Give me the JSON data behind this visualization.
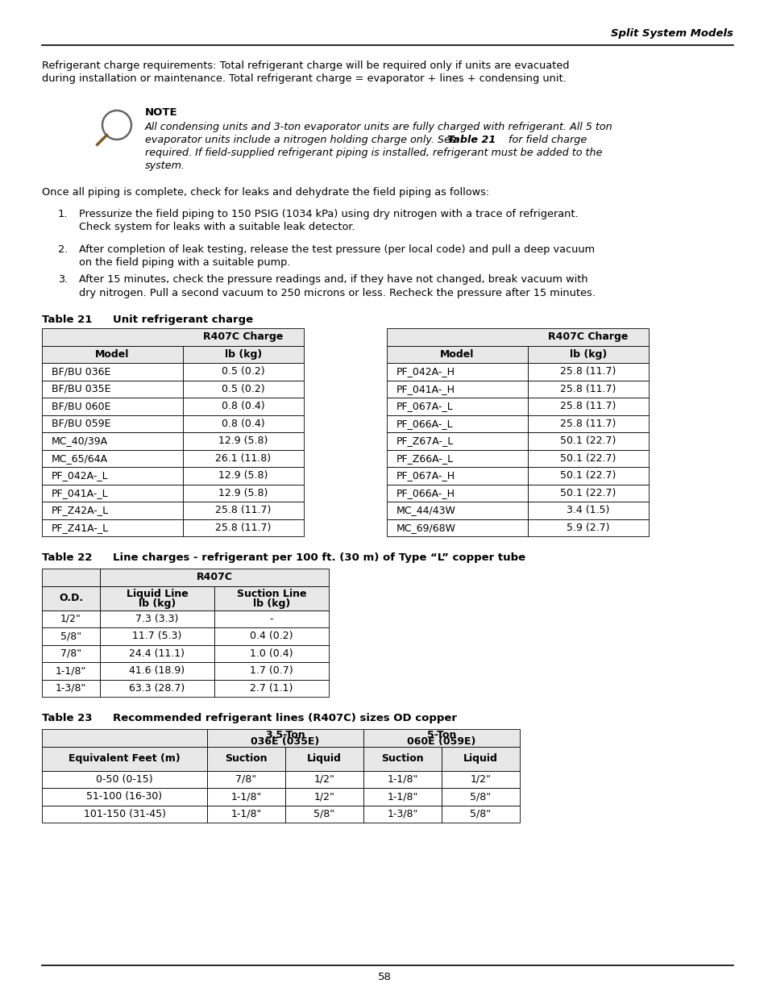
{
  "page_header": "Split System Models",
  "intro_line1": "Refrigerant charge requirements: Total refrigerant charge will be required only if units are evacuated",
  "intro_line2": "during installation or maintenance. Total refrigerant charge = evaporator + lines + condensing unit.",
  "note_title": "NOTE",
  "note_line1": "All condensing units and 3-ton evaporator units are fully charged with refrigerant. All 5 ton",
  "note_line2a": "evaporator units include a nitrogen holding charge only. See ",
  "note_line2b": "Table 21",
  "note_line2c": " for field charge",
  "note_line3": "required. If field-supplied refrigerant piping is installed, refrigerant must be added to the",
  "note_line4": "system.",
  "once_text": "Once all piping is complete, check for leaks and dehydrate the field piping as follows:",
  "step1_line1": "Pressurize the field piping to 150 PSIG (1034 kPa) using dry nitrogen with a trace of refrigerant.",
  "step1_line2": "Check system for leaks with a suitable leak detector.",
  "step2_line1": "After completion of leak testing, release the test pressure (per local code) and pull a deep vacuum",
  "step2_line2": "on the field piping with a suitable pump.",
  "step3_line1": "After 15 minutes, check the pressure readings and, if they have not changed, break vacuum with",
  "step3_line2": "dry nitrogen. Pull a second vacuum to 250 microns or less. Recheck the pressure after 15 minutes.",
  "table21_label": "Table 21",
  "table21_caption": "Unit refrigerant charge",
  "table21_left_rows": [
    [
      "BF/BU 036E",
      "0.5 (0.2)"
    ],
    [
      "BF/BU 035E",
      "0.5 (0.2)"
    ],
    [
      "BF/BU 060E",
      "0.8 (0.4)"
    ],
    [
      "BF/BU 059E",
      "0.8 (0.4)"
    ],
    [
      "MC_40/39A",
      "12.9 (5.8)"
    ],
    [
      "MC_65/64A",
      "26.1 (11.8)"
    ],
    [
      "PF_042A-_L",
      "12.9 (5.8)"
    ],
    [
      "PF_041A-_L",
      "12.9 (5.8)"
    ],
    [
      "PF_Z42A-_L",
      "25.8 (11.7)"
    ],
    [
      "PF_Z41A-_L",
      "25.8 (11.7)"
    ]
  ],
  "table21_right_rows": [
    [
      "PF_042A-_H",
      "25.8 (11.7)"
    ],
    [
      "PF_041A-_H",
      "25.8 (11.7)"
    ],
    [
      "PF_067A-_L",
      "25.8 (11.7)"
    ],
    [
      "PF_066A-_L",
      "25.8 (11.7)"
    ],
    [
      "PF_Z67A-_L",
      "50.1 (22.7)"
    ],
    [
      "PF_Z66A-_L",
      "50.1 (22.7)"
    ],
    [
      "PF_067A-_H",
      "50.1 (22.7)"
    ],
    [
      "PF_066A-_H",
      "50.1 (22.7)"
    ],
    [
      "MC_44/43W",
      "3.4 (1.5)"
    ],
    [
      "MC_69/68W",
      "5.9 (2.7)"
    ]
  ],
  "table22_label": "Table 22",
  "table22_caption": "Line charges - refrigerant per 100 ft. (30 m) of Type “L” copper tube",
  "table22_rows": [
    [
      "1/2\"",
      "7.3 (3.3)",
      "-"
    ],
    [
      "5/8\"",
      "11.7 (5.3)",
      "0.4 (0.2)"
    ],
    [
      "7/8\"",
      "24.4 (11.1)",
      "1.0 (0.4)"
    ],
    [
      "1-1/8\"",
      "41.6 (18.9)",
      "1.7 (0.7)"
    ],
    [
      "1-3/8\"",
      "63.3 (28.7)",
      "2.7 (1.1)"
    ]
  ],
  "table23_label": "Table 23",
  "table23_caption": "Recommended refrigerant lines (R407C) sizes OD copper",
  "table23_rows": [
    [
      "0-50 (0-15)",
      "7/8\"",
      "1/2\"",
      "1-1/8\"",
      "1/2\""
    ],
    [
      "51-100 (16-30)",
      "1-1/8\"",
      "1/2\"",
      "1-1/8\"",
      "5/8\""
    ],
    [
      "101-150 (31-45)",
      "1-1/8\"",
      "5/8\"",
      "1-3/8\"",
      "5/8\""
    ]
  ],
  "page_number": "58",
  "header_bg": "#e8e8e8"
}
